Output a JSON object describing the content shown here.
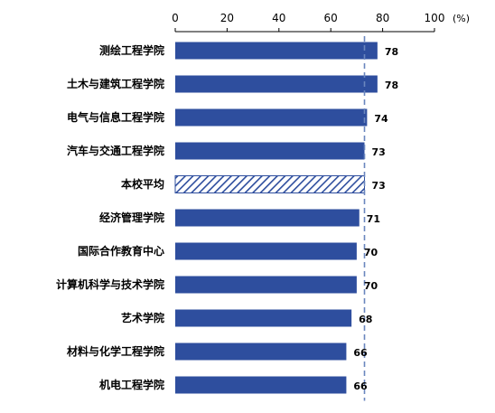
{
  "chart_data": {
    "type": "bar",
    "orientation": "horizontal",
    "unit_label": "(%)",
    "xlim": [
      0,
      100
    ],
    "xticks": [
      0,
      20,
      40,
      60,
      80,
      100
    ],
    "axis_position": "top",
    "grid": false,
    "legend": "none",
    "reference_line": {
      "value": 73,
      "style": "dashed"
    },
    "categories": [
      "测绘工程学院",
      "土木与建筑工程学院",
      "电气与信息工程学院",
      "汽车与交通工程学院",
      "本校平均",
      "经济管理学院",
      "国际合作教育中心",
      "计算机科学与技术学院",
      "艺术学院",
      "材料与化学工程学院",
      "机电工程学院"
    ],
    "values": [
      78,
      78,
      74,
      73,
      73,
      71,
      70,
      70,
      68,
      66,
      66
    ],
    "highlight_index": 4,
    "colors": {
      "bar": "#2E4E9E",
      "highlight_hatch": "#2E4E9E",
      "highlight_bg": "#ffffff",
      "reference_line": "#6A86BE",
      "axis": "#000000",
      "text": "#000000"
    }
  }
}
